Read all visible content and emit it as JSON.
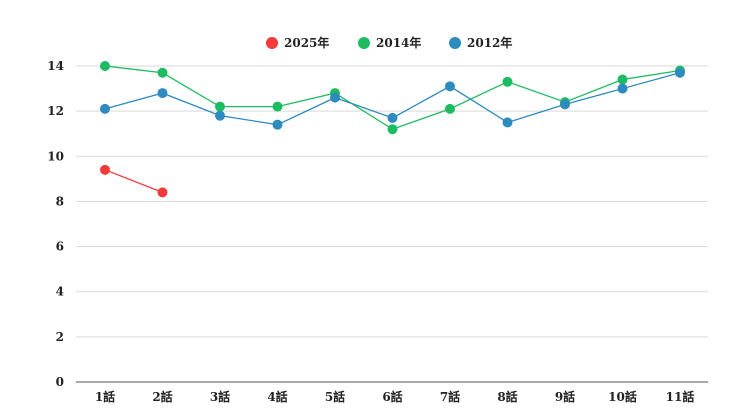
{
  "chart_data": {
    "type": "line",
    "title": "",
    "xlabel": "",
    "ylabel": "",
    "categories": [
      "1話",
      "2話",
      "3話",
      "4話",
      "5話",
      "6話",
      "7話",
      "8話",
      "9話",
      "10話",
      "11話"
    ],
    "ylim": [
      0,
      14
    ],
    "yticks": [
      0,
      2,
      4,
      6,
      8,
      10,
      12,
      14
    ],
    "grid": true,
    "legend_position": "top",
    "series": [
      {
        "name": "2025年",
        "color": "#f43b3b",
        "values": [
          9.4,
          8.4,
          null,
          null,
          null,
          null,
          null,
          null,
          null,
          null,
          null
        ]
      },
      {
        "name": "2014年",
        "color": "#1ebc62",
        "values": [
          14.0,
          13.7,
          12.2,
          12.2,
          12.8,
          11.2,
          12.1,
          13.3,
          12.4,
          13.4,
          13.8
        ]
      },
      {
        "name": "2012年",
        "color": "#2e8bc0",
        "values": [
          12.1,
          12.8,
          11.8,
          11.4,
          12.6,
          11.7,
          13.1,
          11.5,
          12.3,
          13.0,
          13.7
        ]
      }
    ]
  }
}
